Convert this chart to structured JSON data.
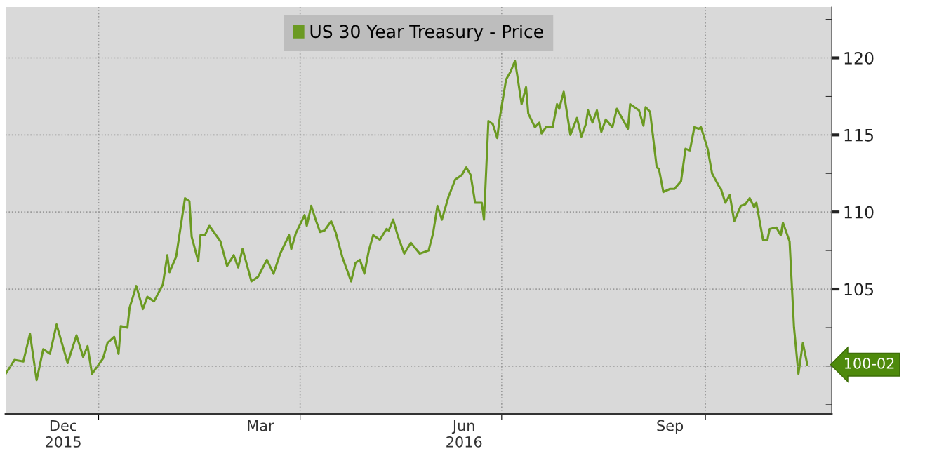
{
  "chart_data": {
    "type": "line",
    "x": [
      "2015-11-20",
      "2015-11-24",
      "2015-11-28",
      "2015-12-01",
      "2015-12-04",
      "2015-12-07",
      "2015-12-10",
      "2015-12-13",
      "2015-12-18",
      "2015-12-22",
      "2015-12-25",
      "2015-12-27",
      "2015-12-29",
      "2016-01-03",
      "2016-01-05",
      "2016-01-08",
      "2016-01-10",
      "2016-01-11",
      "2016-01-14",
      "2016-01-15",
      "2016-01-18",
      "2016-01-21",
      "2016-01-23",
      "2016-01-26",
      "2016-01-30",
      "2016-02-01",
      "2016-02-02",
      "2016-02-05",
      "2016-02-07",
      "2016-02-09",
      "2016-02-11",
      "2016-02-12",
      "2016-02-15",
      "2016-02-16",
      "2016-02-18",
      "2016-02-20",
      "2016-02-22",
      "2016-02-25",
      "2016-02-28",
      "2016-03-02",
      "2016-03-04",
      "2016-03-06",
      "2016-03-10",
      "2016-03-13",
      "2016-03-17",
      "2016-03-20",
      "2016-03-23",
      "2016-03-27",
      "2016-03-28",
      "2016-03-30",
      "2016-04-03",
      "2016-04-04",
      "2016-04-06",
      "2016-04-08",
      "2016-04-10",
      "2016-04-12",
      "2016-04-15",
      "2016-04-17",
      "2016-04-20",
      "2016-04-24",
      "2016-04-26",
      "2016-04-28",
      "2016-04-30",
      "2016-05-02",
      "2016-05-04",
      "2016-05-07",
      "2016-05-10",
      "2016-05-11",
      "2016-05-13",
      "2016-05-15",
      "2016-05-18",
      "2016-05-21",
      "2016-05-25",
      "2016-05-29",
      "2016-05-31",
      "2016-06-02",
      "2016-06-04",
      "2016-06-07",
      "2016-06-10",
      "2016-06-13",
      "2016-06-15",
      "2016-06-17",
      "2016-06-19",
      "2016-06-22",
      "2016-06-23",
      "2016-06-25",
      "2016-06-27",
      "2016-06-29",
      "2016-06-30",
      "2016-07-03",
      "2016-07-05",
      "2016-07-07",
      "2016-07-08",
      "2016-07-10",
      "2016-07-12",
      "2016-07-13",
      "2016-07-16",
      "2016-07-18",
      "2016-07-19",
      "2016-07-21",
      "2016-07-24",
      "2016-07-26",
      "2016-07-27",
      "2016-07-29",
      "2016-08-01",
      "2016-08-04",
      "2016-08-06",
      "2016-08-08",
      "2016-08-09",
      "2016-08-11",
      "2016-08-13",
      "2016-08-15",
      "2016-08-17",
      "2016-08-20",
      "2016-08-22",
      "2016-08-27",
      "2016-08-28",
      "2016-09-01",
      "2016-09-03",
      "2016-09-04",
      "2016-09-06",
      "2016-09-09",
      "2016-09-10",
      "2016-09-12",
      "2016-09-15",
      "2016-09-17",
      "2016-09-20",
      "2016-09-22",
      "2016-09-24",
      "2016-09-26",
      "2016-09-28",
      "2016-09-29",
      "2016-10-02",
      "2016-10-04",
      "2016-10-07",
      "2016-10-08",
      "2016-10-10",
      "2016-10-12",
      "2016-10-14",
      "2016-10-17",
      "2016-10-19",
      "2016-10-21",
      "2016-10-23",
      "2016-10-24",
      "2016-10-27",
      "2016-10-29",
      "2016-10-30",
      "2016-11-02",
      "2016-11-04",
      "2016-11-05",
      "2016-11-08",
      "2016-11-10",
      "2016-11-12",
      "2016-11-14",
      "2016-11-16"
    ],
    "series": [
      {
        "name": "US 30 Year Treasury - Price",
        "color": "#6b9a22",
        "values": [
          99.5,
          100.4,
          100.3,
          102.1,
          99.1,
          101.1,
          100.8,
          102.7,
          100.2,
          102.0,
          100.6,
          101.3,
          99.5,
          100.5,
          101.5,
          101.9,
          100.8,
          102.6,
          102.5,
          103.8,
          105.2,
          103.7,
          104.5,
          104.2,
          105.3,
          107.2,
          106.1,
          107.1,
          109.0,
          110.9,
          110.7,
          108.4,
          106.8,
          108.5,
          108.5,
          109.1,
          108.7,
          108.1,
          106.5,
          107.2,
          106.4,
          107.6,
          105.5,
          105.8,
          106.9,
          106.0,
          107.3,
          108.5,
          107.6,
          108.6,
          109.8,
          109.1,
          110.4,
          109.5,
          108.7,
          108.8,
          109.4,
          108.7,
          107.1,
          105.5,
          106.7,
          106.9,
          106.0,
          107.5,
          108.5,
          108.2,
          108.9,
          108.8,
          109.5,
          108.5,
          107.3,
          108.0,
          107.3,
          107.5,
          108.6,
          110.4,
          109.5,
          111.0,
          112.1,
          112.4,
          112.9,
          112.4,
          110.6,
          110.6,
          109.5,
          115.9,
          115.7,
          114.8,
          116.0,
          118.6,
          119.1,
          119.8,
          118.9,
          117.0,
          118.1,
          116.4,
          115.5,
          115.8,
          115.1,
          115.5,
          115.5,
          117.0,
          116.7,
          117.8,
          115.0,
          116.1,
          114.9,
          115.7,
          116.6,
          115.8,
          116.6,
          115.2,
          116.0,
          115.5,
          116.7,
          115.4,
          117.0,
          116.6,
          115.6,
          116.8,
          116.5,
          112.9,
          112.8,
          111.3,
          111.5,
          111.5,
          112.0,
          114.1,
          114.0,
          115.5,
          115.4,
          115.5,
          114.1,
          112.5,
          111.7,
          111.5,
          110.6,
          111.1,
          109.4,
          110.4,
          110.5,
          110.9,
          110.3,
          110.6,
          108.2,
          108.2,
          108.9,
          109.0,
          108.5,
          109.3,
          108.1,
          102.5,
          99.5,
          101.5,
          100.1
        ]
      }
    ],
    "xlim": [
      "2015-11-20",
      "2016-11-27"
    ],
    "xticks": [
      {
        "value": "2016-01-01",
        "label": null
      },
      {
        "value": "2016-04-01",
        "label": null
      },
      {
        "value": "2016-07-01",
        "label": null
      },
      {
        "value": "2016-10-01",
        "label": null
      },
      {
        "value": "2015-12-16",
        "label": "Dec\n2015"
      },
      {
        "value": "2016-03-14",
        "label": "Mar"
      },
      {
        "value": "2016-06-14",
        "label": "Jun\n2016"
      },
      {
        "value": "2016-09-15",
        "label": "Sep"
      }
    ],
    "ylim": [
      96.9,
      123.3
    ],
    "yticks": [
      {
        "value": 97.5,
        "label": null
      },
      {
        "value": 100,
        "label": null
      },
      {
        "value": 102.5,
        "label": null
      },
      105,
      {
        "value": 107.5,
        "label": null
      },
      110,
      {
        "value": 112.5,
        "label": null
      },
      115,
      {
        "value": 117.5,
        "label": null
      },
      120,
      {
        "value": 122.5,
        "label": null
      }
    ],
    "annotations": [
      "100-02"
    ],
    "ref_lines": [
      {
        "axis": "y",
        "value": 100,
        "color": "#9a9a9a",
        "line_style": "dotted"
      }
    ],
    "grid": true,
    "legend": "top",
    "line_style": "solid",
    "marker": "none"
  }
}
